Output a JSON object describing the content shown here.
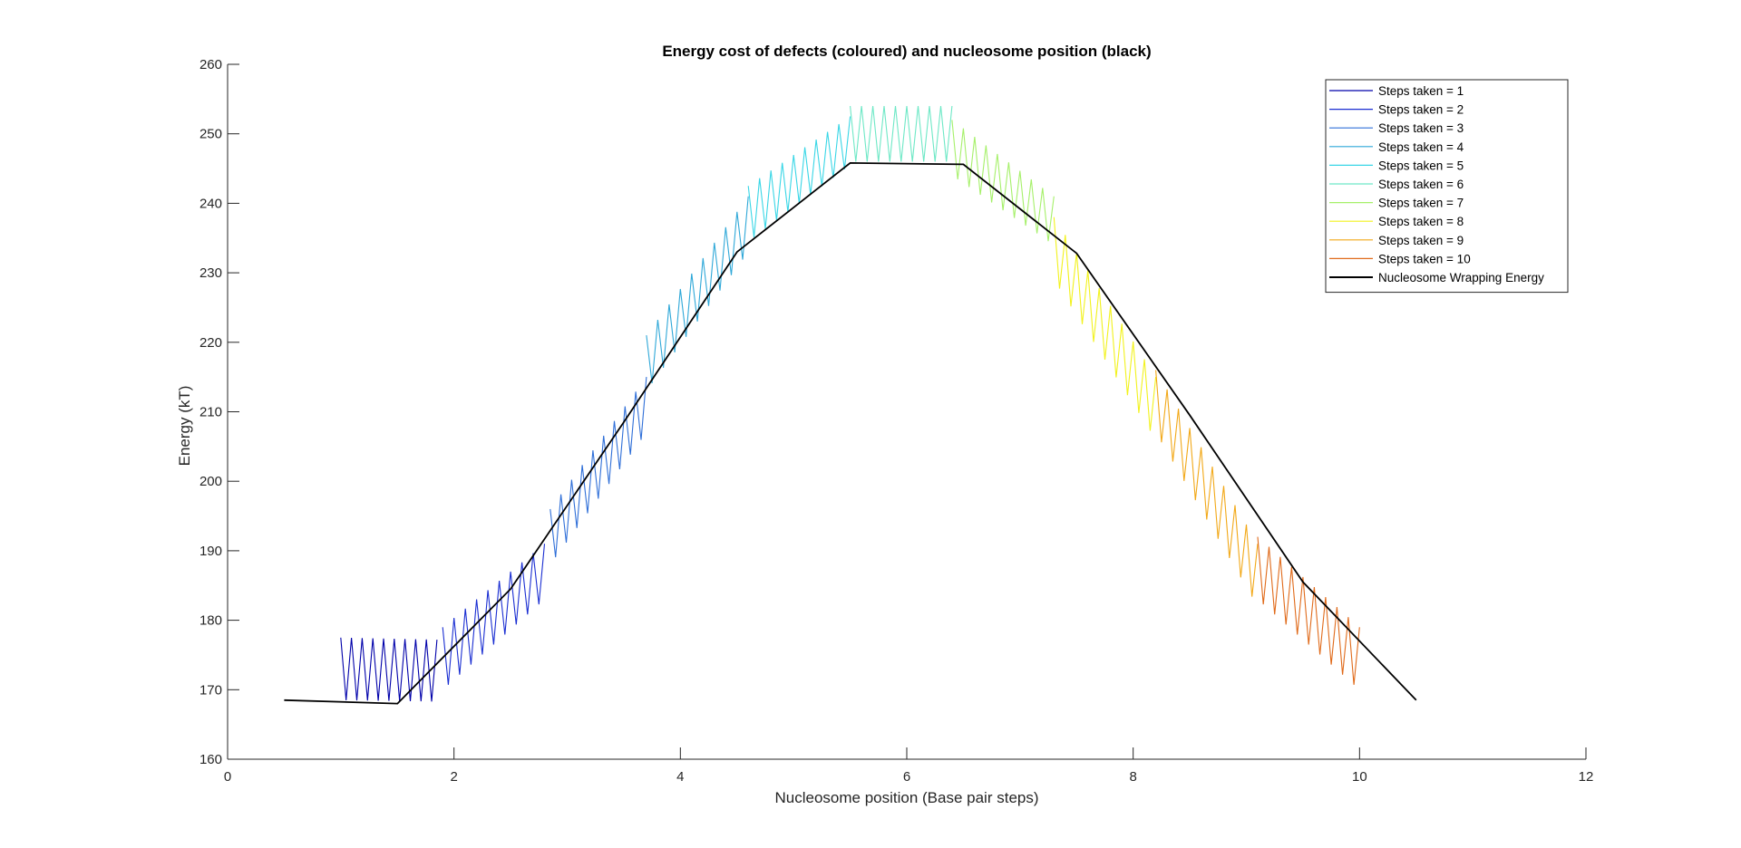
{
  "chart_data": {
    "type": "line",
    "title": "Energy cost of defects (coloured) and nucleosome position (black)",
    "xlabel": "Nucleosome position (Base pair steps)",
    "ylabel": "Energy (kT)",
    "xlim": [
      0,
      12
    ],
    "ylim": [
      160,
      260
    ],
    "xticks": [
      "0",
      "2",
      "4",
      "6",
      "8",
      "10",
      "12"
    ],
    "yticks": [
      "160",
      "170",
      "180",
      "190",
      "200",
      "210",
      "220",
      "230",
      "240",
      "250",
      "260"
    ],
    "grid": false,
    "legend_position": "top-right",
    "series": [
      {
        "name": "Steps taken = 1",
        "color": "#0000aa",
        "x_range": [
          1.0,
          1.85
        ],
        "upper": [
          [
            1.0,
            177.5
          ],
          [
            1.85,
            177.2
          ]
        ],
        "lower": [
          [
            1.0,
            168.5
          ],
          [
            1.85,
            168.3
          ]
        ]
      },
      {
        "name": "Steps taken = 2",
        "color": "#1a2ed2",
        "x_range": [
          1.9,
          2.8
        ],
        "upper": [
          [
            1.9,
            179.0
          ],
          [
            2.8,
            191.0
          ]
        ],
        "lower": [
          [
            1.9,
            170.0
          ],
          [
            2.8,
            183.0
          ]
        ]
      },
      {
        "name": "Steps taken = 3",
        "color": "#2f6fd8",
        "x_range": [
          2.85,
          3.7
        ],
        "upper": [
          [
            2.85,
            196.0
          ],
          [
            3.7,
            215.0
          ]
        ],
        "lower": [
          [
            2.85,
            188.0
          ],
          [
            3.7,
            207.0
          ]
        ]
      },
      {
        "name": "Steps taken = 4",
        "color": "#2fa8d8",
        "x_range": [
          3.7,
          4.6
        ],
        "upper": [
          [
            3.7,
            221.0
          ],
          [
            4.6,
            241.0
          ]
        ],
        "lower": [
          [
            3.7,
            213.0
          ],
          [
            4.6,
            233.0
          ]
        ]
      },
      {
        "name": "Steps taken = 5",
        "color": "#38d6e6",
        "x_range": [
          4.6,
          5.5
        ],
        "upper": [
          [
            4.6,
            242.5
          ],
          [
            5.5,
            252.5
          ]
        ],
        "lower": [
          [
            4.6,
            234.5
          ],
          [
            5.5,
            245.5
          ]
        ]
      },
      {
        "name": "Steps taken = 6",
        "color": "#6ee8c6",
        "x_range": [
          5.5,
          6.4
        ],
        "upper": [
          [
            5.5,
            254.0
          ],
          [
            6.4,
            254.0
          ]
        ],
        "lower": [
          [
            5.5,
            246.0
          ],
          [
            6.4,
            246.0
          ]
        ]
      },
      {
        "name": "Steps taken = 7",
        "color": "#a6f06a",
        "x_range": [
          6.4,
          7.3
        ],
        "upper": [
          [
            6.4,
            252.0
          ],
          [
            7.3,
            241.0
          ]
        ],
        "lower": [
          [
            6.4,
            244.0
          ],
          [
            7.3,
            234.0
          ]
        ]
      },
      {
        "name": "Steps taken = 8",
        "color": "#f2f21c",
        "x_range": [
          7.3,
          8.2
        ],
        "upper": [
          [
            7.3,
            238.0
          ],
          [
            8.2,
            215.0
          ]
        ],
        "lower": [
          [
            7.3,
            229.0
          ],
          [
            8.2,
            206.0
          ]
        ]
      },
      {
        "name": "Steps taken = 9",
        "color": "#f2a817",
        "x_range": [
          8.2,
          9.1
        ],
        "upper": [
          [
            8.2,
            216.0
          ],
          [
            9.1,
            191.0
          ]
        ],
        "lower": [
          [
            8.2,
            207.0
          ],
          [
            9.1,
            182.0
          ]
        ]
      },
      {
        "name": "Steps taken = 10",
        "color": "#e06a1a",
        "x_range": [
          9.1,
          10.0
        ],
        "upper": [
          [
            9.1,
            192.0
          ],
          [
            10.0,
            179.0
          ]
        ],
        "lower": [
          [
            9.1,
            183.0
          ],
          [
            10.0,
            170.0
          ]
        ]
      },
      {
        "name": "Nucleosome Wrapping Energy",
        "color": "#000000",
        "x": [
          0.5,
          1.5,
          2.5,
          3.5,
          4.5,
          5.5,
          6.5,
          7.5,
          8.5,
          9.5,
          10.5
        ],
        "y": [
          168.5,
          168.0,
          184.5,
          208.5,
          233.0,
          245.8,
          245.6,
          232.8,
          209.5,
          185.5,
          168.5
        ]
      }
    ]
  }
}
